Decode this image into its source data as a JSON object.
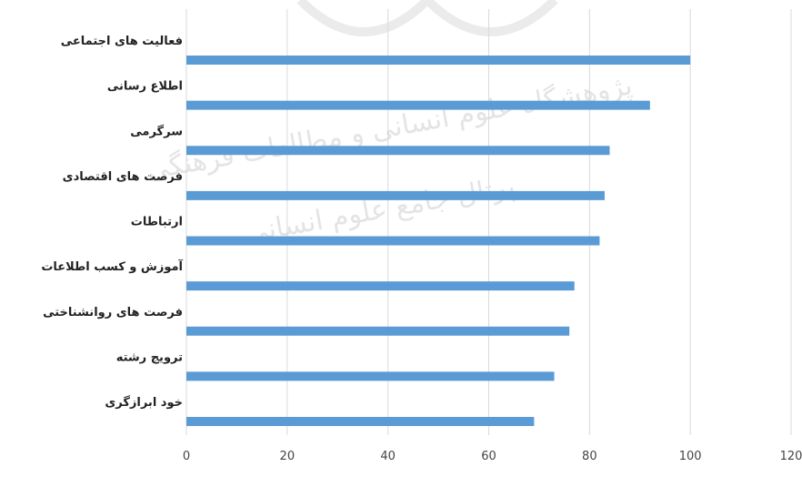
{
  "chart_data": {
    "type": "bar",
    "orientation": "horizontal",
    "categories": [
      "فعالیت های اجتماعی",
      "اطلاع رسانی",
      "سرگرمی",
      "فرصت های اقتصادی",
      "ارتباطات",
      "آموزش و کسب اطلاعات",
      "فرصت های روانشناختی",
      "ترویج رشته",
      "خود ابرازگری"
    ],
    "values": [
      100,
      92,
      84,
      83,
      82,
      77,
      76,
      73,
      69
    ],
    "xlim": [
      0,
      120
    ],
    "xticks": [
      "0",
      "20",
      "40",
      "60",
      "80",
      "100",
      "120"
    ],
    "bar_color": "#5b9bd5",
    "grid": true,
    "legend": "none"
  },
  "watermark": {
    "line1": "پژوهشگاه علوم انسانی و مطالعات فرهنگی",
    "line2": "پرتال جامع علوم انسانی"
  }
}
